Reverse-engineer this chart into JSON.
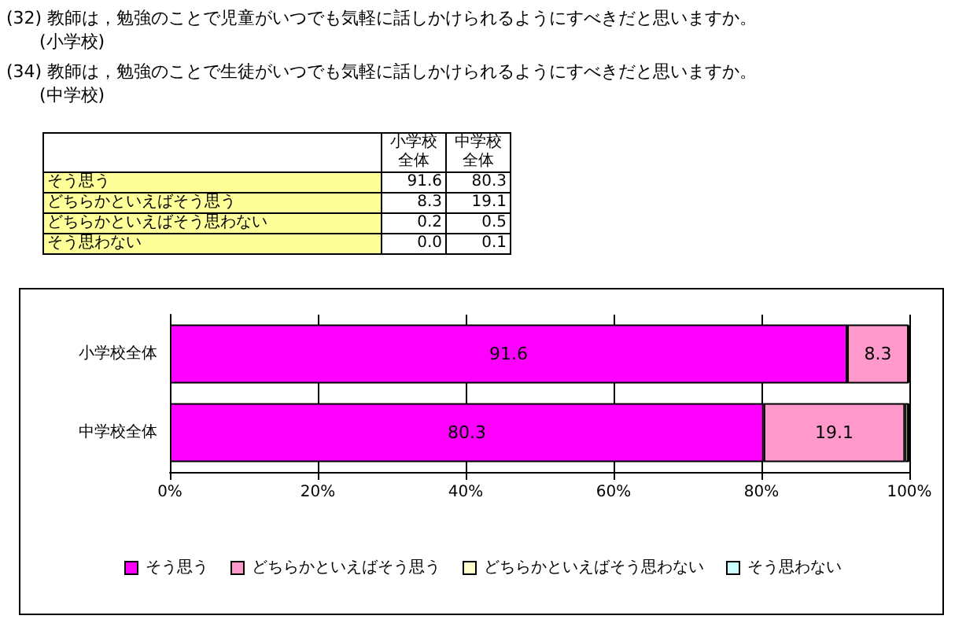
{
  "chart_data": {
    "type": "bar",
    "orientation": "horizontal",
    "stacked": true,
    "title": "(32) 教師は，勉強のことで児童がいつでも気軽に話しかけられるようにすべきだと思いますか。\n(小学校)",
    "subtitle": "(34) 教師は，勉強のことで生徒がいつでも気軽に話しかけられるようにすべきだと思いますか。\n(中学校)",
    "categories": [
      "小学校全体",
      "中学校全体"
    ],
    "series": [
      {
        "name": "そう思う",
        "color": "#ff00ff",
        "values": [
          91.6,
          80.3
        ],
        "value_labels": [
          "91.6",
          "80.3"
        ]
      },
      {
        "name": "どちらかといえばそう思う",
        "color": "#ff99cc",
        "values": [
          8.3,
          19.1
        ],
        "value_labels": [
          "8.3",
          "19.1"
        ]
      },
      {
        "name": "どちらかといえばそう思わない",
        "color": "#ffffcc",
        "values": [
          0.2,
          0.5
        ]
      },
      {
        "name": "そう思わない",
        "color": "#ccffff",
        "values": [
          0.0,
          0.1
        ]
      }
    ],
    "annotations": [
      "0.2",
      "0.5",
      "0.0",
      "0.1"
    ],
    "xlim": [
      0,
      100
    ],
    "xticks": [
      {
        "value": 0,
        "label": "0%"
      },
      {
        "value": 20,
        "label": "20%"
      },
      {
        "value": 40,
        "label": "40%"
      },
      {
        "value": 60,
        "label": "60%"
      },
      {
        "value": 80,
        "label": "80%"
      },
      {
        "value": 100,
        "label": "100%"
      }
    ],
    "grid": "x",
    "legend": "bottom"
  }
}
